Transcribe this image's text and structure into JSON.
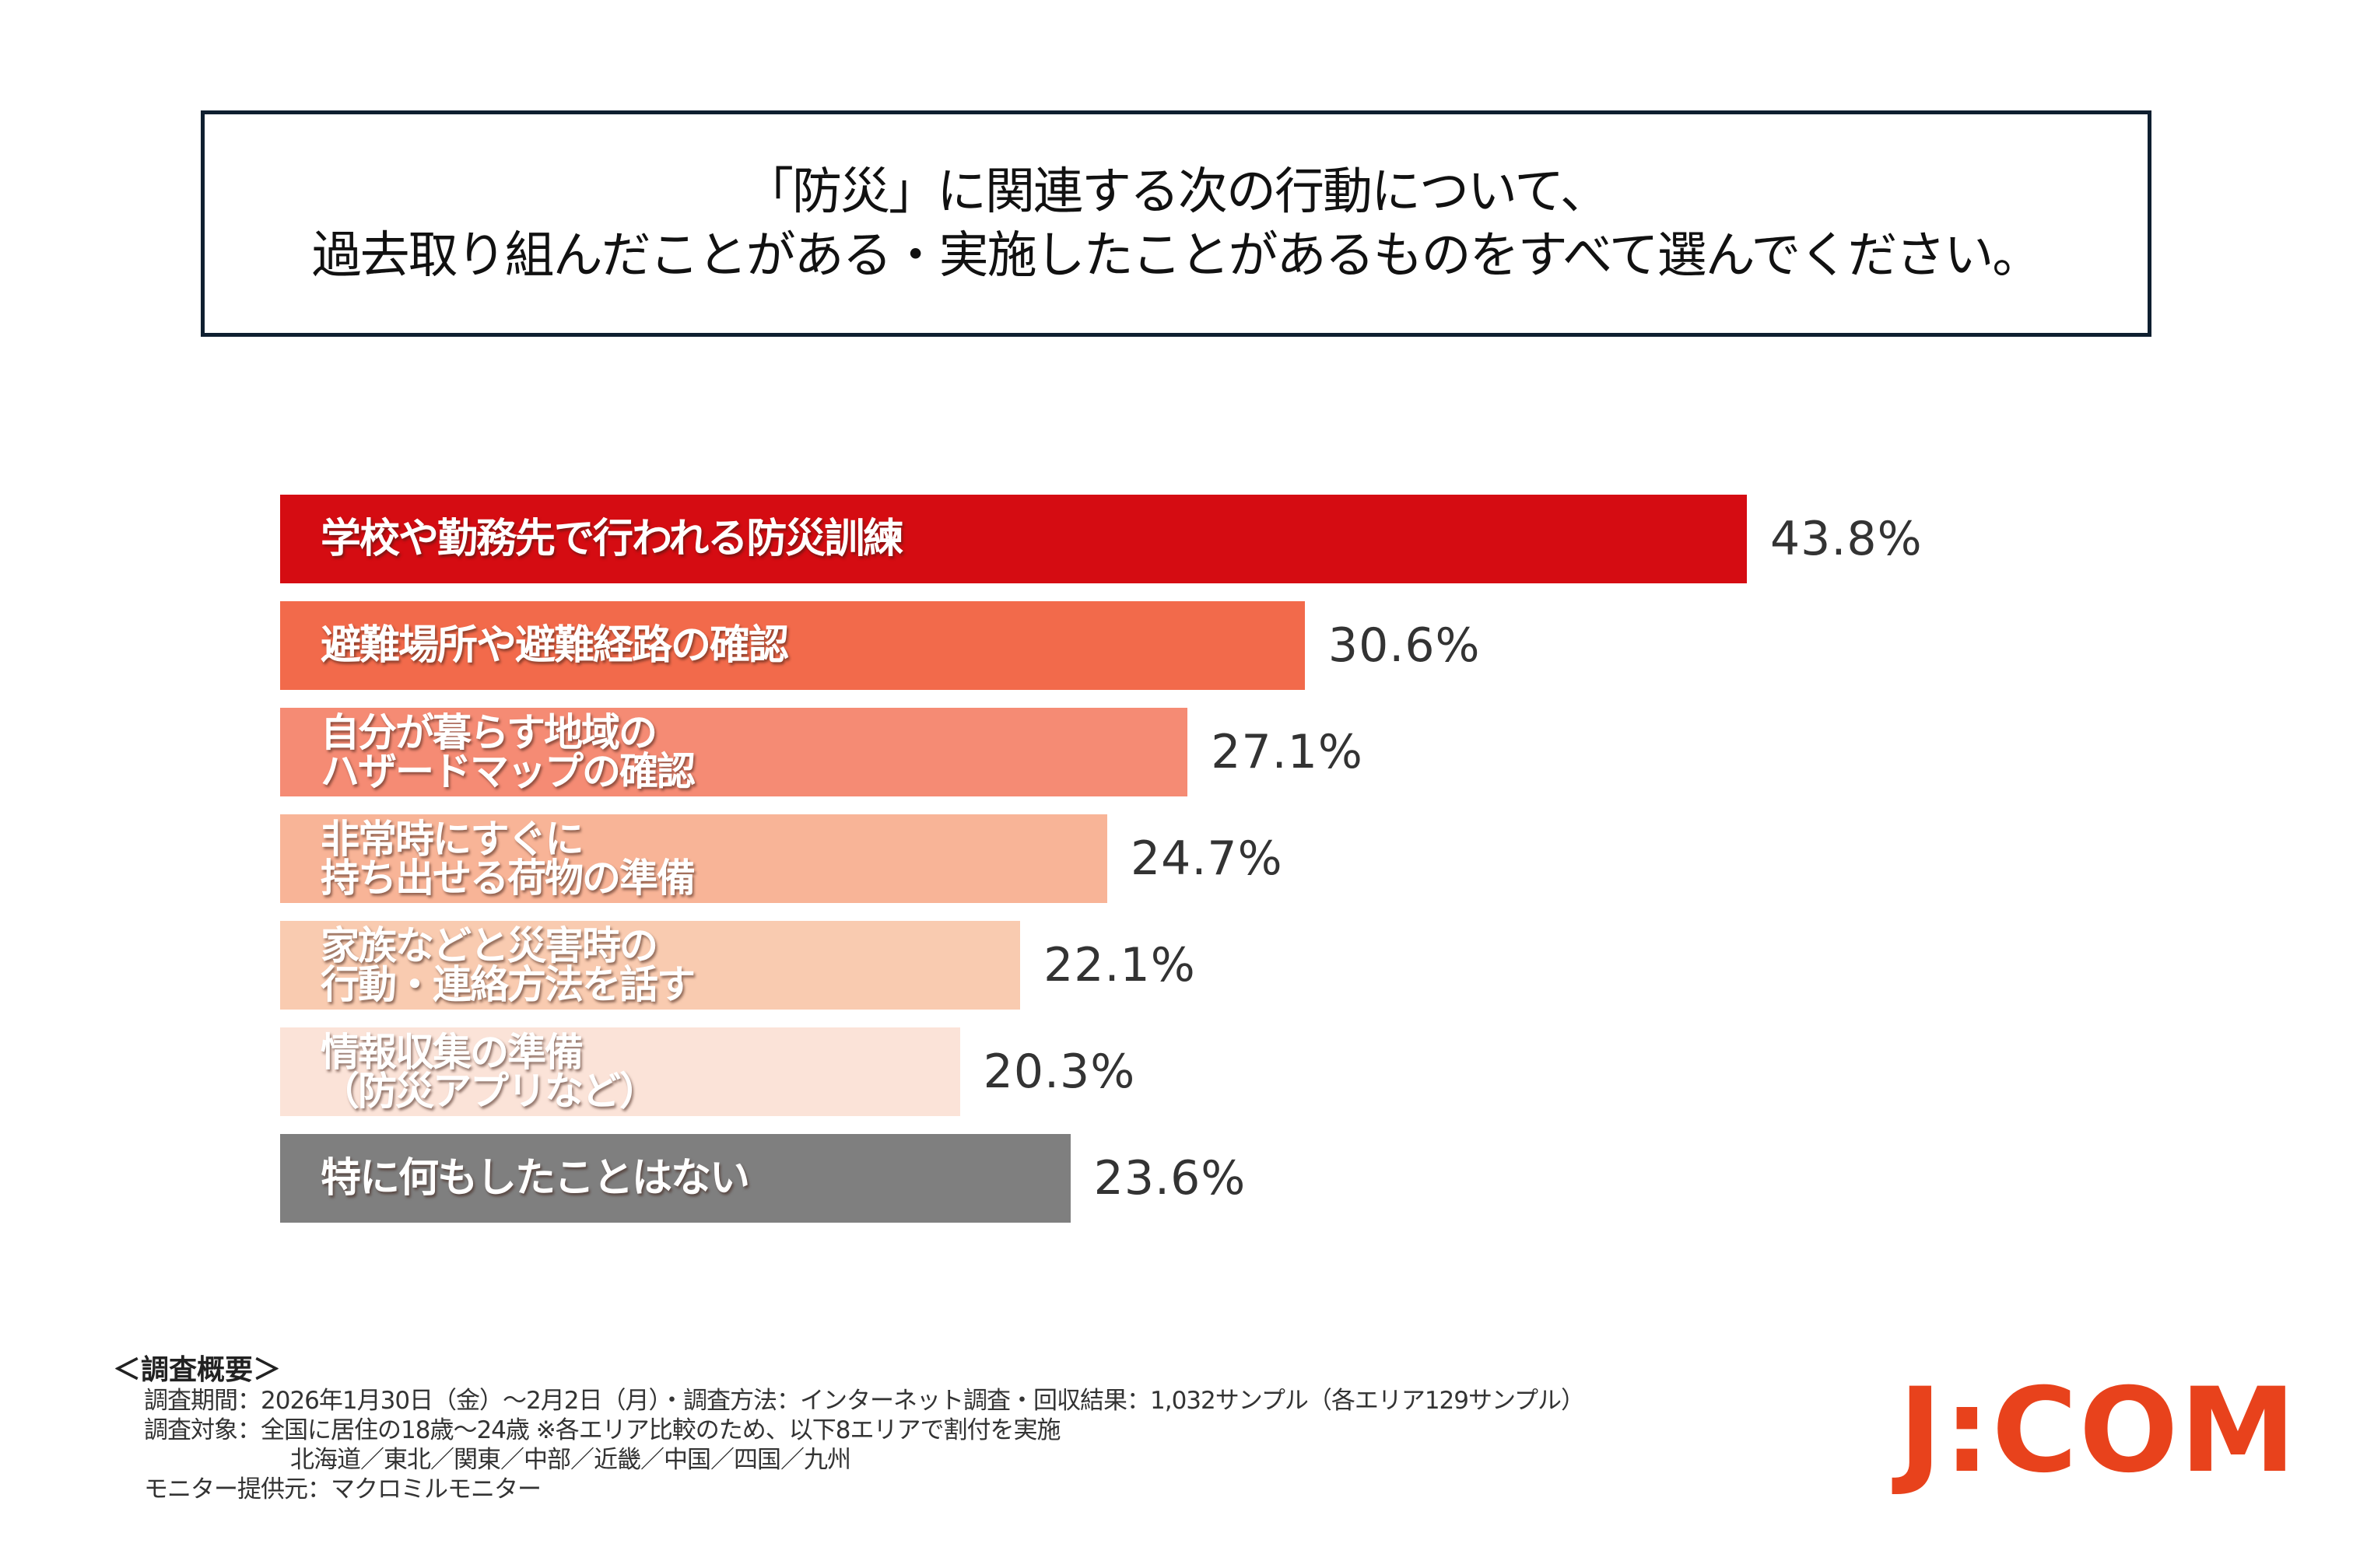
{
  "question": {
    "line1": "「防災」に関連する次の行動について、",
    "line2": "過去取り組んだことがある・実施したことがあるものをすべて選んでください。"
  },
  "chart_data": {
    "type": "bar",
    "orientation": "horizontal",
    "title": "「防災」に関連する次の行動について、過去取り組んだことがある・実施したことがあるものをすべて選んでください。",
    "xlabel": "",
    "ylabel": "",
    "unit": "%",
    "grid": false,
    "categories": [
      "学校や勤務先で行われる防災訓練",
      "避難場所や避難経路の確認",
      "自分が暮らす地域の\nハザードマップの確認",
      "非常時にすぐに\n持ち出せる荷物の準備",
      "家族などと災害時の\n行動・連絡方法を話す",
      "情報収集の準備\n（防災アプリなど）",
      "特に何もしたことはない"
    ],
    "values": [
      43.8,
      30.6,
      27.1,
      24.7,
      22.1,
      20.3,
      23.6
    ],
    "value_labels": [
      "43.8%",
      "30.6%",
      "27.1%",
      "24.7%",
      "22.1%",
      "20.3%",
      "23.6%"
    ],
    "colors": [
      "#d50c12",
      "#f26a4b",
      "#f58b74",
      "#f8b497",
      "#f9cbb0",
      "#fbe3d8",
      "#7f7f7f"
    ]
  },
  "footer": {
    "heading": "＜調査概要＞",
    "period": "調査期間：2026年1月30日（金）～2月2日（月）・調査方法：インターネット調査・回収結果：1,032サンプル（各エリア129サンプル）",
    "target": "調査対象：全国に居住の18歳～24歳 ※各エリア比較のため、以下8エリアで割付を実施",
    "regions": "北海道／東北／関東／中部／近畿／中国／四国／九州",
    "provider": "モニター提供元：マクロミルモニター"
  },
  "logo": {
    "text": "J:COM",
    "color": "#e8421c"
  }
}
